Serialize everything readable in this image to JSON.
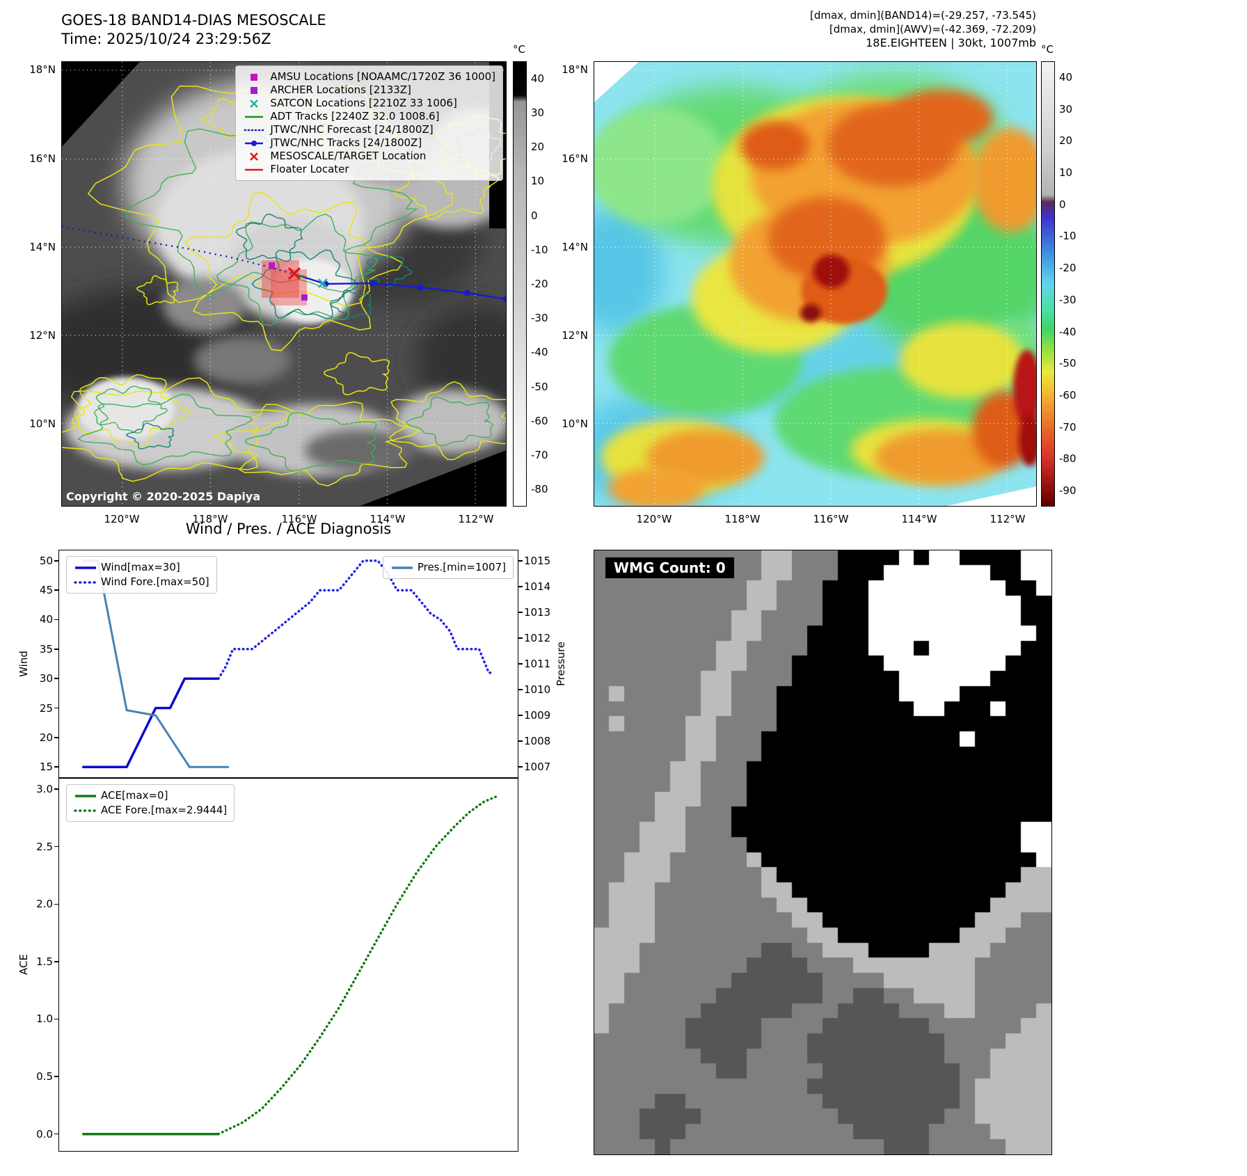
{
  "left_map": {
    "title_line1": "GOES-18 BAND14-DIAS MESOSCALE",
    "title_line2": "Time: 2025/10/24 23:29:56Z",
    "copyright": "Copyright © 2020-2025 Dapiya",
    "colorbar_unit": "°C",
    "colorbar_ticks": [
      "40",
      "30",
      "20",
      "10",
      "0",
      "-10",
      "-20",
      "-30",
      "-40",
      "-50",
      "-60",
      "-70",
      "-80"
    ],
    "legend": [
      {
        "marker": "square",
        "color": "#c613c6",
        "label": "AMSU Locations [NOAAMC/1720Z 36 1000]"
      },
      {
        "marker": "square",
        "color": "#a81ad2",
        "label": "ARCHER Locations [2133Z]"
      },
      {
        "marker": "x",
        "color": "#20b2aa",
        "label": "SATCON Locations [2210Z 33 1006]"
      },
      {
        "marker": "line",
        "color": "#1f8f1f",
        "label": "ADT Tracks [2240Z 32.0 1008.6]"
      },
      {
        "marker": "dotted",
        "color": "#1a1ad0",
        "label": "JTWC/NHC Forecast [24/1800Z]"
      },
      {
        "marker": "line-dot",
        "color": "#1a1ad0",
        "label": "JTWC/NHC Tracks [24/1800Z]"
      },
      {
        "marker": "x",
        "color": "#e51212",
        "label": "MESOSCALE/TARGET Location"
      },
      {
        "marker": "line",
        "color": "#e51212",
        "label": "Floater Locater"
      }
    ]
  },
  "right_map": {
    "header_line1": "[dmax, dmin](BAND14)=(-29.257, -73.545)",
    "header_line2": "[dmax, dmin](AWV)=(-42.369, -72.209)",
    "header_line3": "18E.EIGHTEEN | 30kt, 1007mb",
    "colorbar_unit": "°C",
    "colorbar_ticks": [
      "40",
      "30",
      "20",
      "10",
      "0",
      "-10",
      "-20",
      "-30",
      "-40",
      "-50",
      "-60",
      "-70",
      "-80",
      "-90"
    ]
  },
  "maps": {
    "x_ticks": [
      "120°W",
      "118°W",
      "116°W",
      "114°W",
      "112°W"
    ],
    "y_ticks": [
      "18°N",
      "16°N",
      "14°N",
      "12°N",
      "10°N"
    ]
  },
  "charts_title": "Wind / Pres. / ACE Diagnosis",
  "chart_data": [
    {
      "type": "line",
      "title": "Wind / Pres. / ACE Diagnosis",
      "ylabel_left": "Wind",
      "ylabel_right": "Pressure",
      "y_ticks_left": [
        "15",
        "20",
        "25",
        "30",
        "35",
        "40",
        "45",
        "50"
      ],
      "y_ticks_right": [
        "1007",
        "1008",
        "1009",
        "1010",
        "1011",
        "1012",
        "1013",
        "1014",
        "1015"
      ],
      "xlim": [
        0,
        95
      ],
      "ylim_left": [
        13.25,
        51.75
      ],
      "ylim_right": [
        1006.6,
        1015.4
      ],
      "legend_position": "upper-left and upper-right",
      "series": [
        {
          "name": "Wind[max=30]",
          "color": "#0a0ad2",
          "style": "solid",
          "width": 3.5,
          "axis": "left",
          "points": [
            [
              5,
              15
            ],
            [
              14,
              15
            ],
            [
              20,
              25
            ],
            [
              23,
              25
            ],
            [
              26,
              30
            ],
            [
              33,
              30
            ]
          ]
        },
        {
          "name": "Wind Fore.[max=50]",
          "color": "#2222e6",
          "style": "dotted",
          "width": 3.5,
          "axis": "left",
          "points": [
            [
              33,
              30
            ],
            [
              34.5,
              32
            ],
            [
              36,
              35
            ],
            [
              40,
              35
            ],
            [
              43,
              37
            ],
            [
              46,
              39
            ],
            [
              49,
              41
            ],
            [
              52,
              43
            ],
            [
              54,
              45
            ],
            [
              58,
              45
            ],
            [
              60,
              47
            ],
            [
              62,
              49
            ],
            [
              63,
              50
            ],
            [
              66,
              50
            ],
            [
              68,
              48
            ],
            [
              70,
              45
            ],
            [
              73,
              45
            ],
            [
              75,
              43
            ],
            [
              77,
              41
            ],
            [
              79,
              40
            ],
            [
              81,
              38
            ],
            [
              82.5,
              35
            ],
            [
              87,
              35
            ],
            [
              88,
              33
            ],
            [
              89,
              31
            ],
            [
              90,
              31
            ]
          ]
        },
        {
          "name": "Pres.[min=1007]",
          "color": "#4682b4",
          "style": "solid",
          "width": 3,
          "axis": "right",
          "points": [
            [
              5,
              1015
            ],
            [
              8,
              1015
            ],
            [
              14,
              1009.2
            ],
            [
              20,
              1009
            ],
            [
              27,
              1007
            ],
            [
              35,
              1007
            ]
          ]
        }
      ]
    },
    {
      "type": "line",
      "ylabel_left": "ACE",
      "y_ticks_left": [
        "0.0",
        "0.5",
        "1.0",
        "1.5",
        "2.0",
        "2.5",
        "3.0"
      ],
      "xlim": [
        0,
        95
      ],
      "ylim_left": [
        -0.147,
        3.091
      ],
      "legend_position": "upper-left",
      "series": [
        {
          "name": "ACE[max=0]",
          "color": "#127a12",
          "style": "solid",
          "width": 3.5,
          "axis": "left",
          "points": [
            [
              5,
              0
            ],
            [
              33,
              0
            ]
          ]
        },
        {
          "name": "ACE Fore.[max=2.9444]",
          "color": "#127a12",
          "style": "dotted",
          "width": 3.5,
          "axis": "left",
          "points": [
            [
              33,
              0
            ],
            [
              38,
              0.1
            ],
            [
              42,
              0.22
            ],
            [
              46,
              0.4
            ],
            [
              50,
              0.6
            ],
            [
              54,
              0.84
            ],
            [
              58,
              1.1
            ],
            [
              62,
              1.4
            ],
            [
              66,
              1.7
            ],
            [
              70,
              2.0
            ],
            [
              74,
              2.27
            ],
            [
              78,
              2.5
            ],
            [
              82,
              2.68
            ],
            [
              85,
              2.8
            ],
            [
              88,
              2.89
            ],
            [
              91,
              2.944
            ]
          ]
        }
      ]
    }
  ],
  "wmg": {
    "label": "WMG Count: 0",
    "palette": {
      ".": "#7f7f7f",
      "l": "#bcbcbc",
      "k": "#000000",
      "w": "#ffffff",
      "d": "#565656"
    },
    "rows": [
      "...........ll...kkkkwkwwkkkkww",
      "...........ll...kkkwwwwwwwkkww",
      "..........ll...kkkwwwwwwwwwkkw",
      "..........ll...kkkwwwwwwwwwwkk",
      ".........ll....kkkwwwwwwwwwwkk",
      ".........ll...kkkkwwwwwwwwwwwk",
      "........ll....kkkkwwwkwwwwwwkk",
      "........ll...kkkkkkwwwwwwwwkkk",
      ".......ll....kkkkkkkwwwwwwkkkk",
      ".l.....ll...kkkkkkkkwwwwkkkkkk",
      ".......ll...kkkkkkkkkwwkkkwkkk",
      ".l....ll....kkkkkkkkkkkkkkkkkk",
      "......ll...kkkkkkkkkkkkkwkkkkk",
      "......ll...kkkkkkkkkkkkkkkkkkk",
      ".....ll...kkkkkkkkkkkkkkkkkkkk",
      ".....ll...kkkkkkkkkkkkkkkkkkkk",
      "....lll...kkkkkkkkkkkkkkkkkkkk",
      "....ll...kkkkkkkkkkkkkkkkkkkkk",
      "...lll...kkkkkkkkkkkkkkkkkkkww",
      "...lll....kkkkkkkkkkkkkkkkkkww",
      "..lll.....lkkkkkkkkkkkkkkkkkkw",
      "..lll......lkkkkkkkkkkkkkkkkll",
      ".lll.......llkkkkkkkkkkkkkklll",
      ".lll........llkkkkkkkkkkkkllll",
      ".lll.........llkkkkkkkkkklll..",
      "llll..........llkkkkkkkklll...",
      "lll........dd..lllkkkkllll....",
      "lll.......dddd...llllllll.....",
      "ll.......dddddd....llllll.....",
      "ll......ddddddd..dd..llll.....",
      "l......dddddd...dddd...ll....l",
      "l.....ddddd....ddddddd......ll",
      "......ddddd...ddddddddd....lll",
      ".......ddd....ddddddddd...llll",
      "........dd.....ddddddddd..llll",
      "..............dddddddddd.lllll",
      "....dd.........ddddddddd.lllll",
      "...dddd.........ddddddd..lllll",
      "...ddd...........ddddd....llll",
      "....d..............ddd.....lll"
    ]
  }
}
